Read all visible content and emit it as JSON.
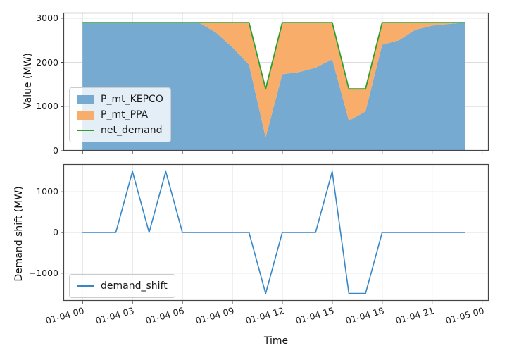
{
  "figure": {
    "background": "#ffffff"
  },
  "colors": {
    "kepco": "#76aad0",
    "ppa": "#f9ad6a",
    "net": "#2ca02c",
    "shift": "#3787c8",
    "grid": "#dddddd",
    "spine": "#454545",
    "text": "#111111"
  },
  "x_axis": {
    "label": "Time",
    "xlim": [
      -1.15,
      24.4
    ],
    "tick_hours": [
      0,
      3,
      6,
      9,
      12,
      15,
      18,
      21,
      24
    ],
    "tick_labels": [
      "01-04 00",
      "01-04 03",
      "01-04 06",
      "01-04 09",
      "01-04 12",
      "01-04 15",
      "01-04 18",
      "01-04 21",
      "01-05 00"
    ]
  },
  "chart_data": [
    {
      "type": "area",
      "title": "",
      "ylabel": "Value (MW)",
      "ylim": [
        0,
        3125
      ],
      "yticks": {
        "values": [
          0,
          1000,
          2000,
          3000
        ],
        "labels": [
          "0",
          "1000",
          "2000",
          "3000"
        ]
      },
      "grid": true,
      "legend_position": "center left",
      "x_hours": [
        0,
        1,
        2,
        3,
        4,
        5,
        6,
        7,
        8,
        9,
        10,
        11,
        12,
        13,
        14,
        15,
        16,
        17,
        18,
        19,
        20,
        21,
        22,
        23
      ],
      "series": [
        {
          "name": "P_mt_KEPCO",
          "render": "area",
          "color_key": "kepco",
          "values": [
            2900,
            2900,
            2900,
            2900,
            2900,
            2900,
            2900,
            2900,
            2680,
            2340,
            1950,
            300,
            1730,
            1780,
            1880,
            2070,
            680,
            890,
            2400,
            2500,
            2740,
            2830,
            2870,
            2900
          ]
        },
        {
          "name": "P_mt_PPA",
          "render": "area",
          "color_key": "ppa",
          "values": [
            0,
            0,
            0,
            0,
            0,
            0,
            0,
            0,
            220,
            560,
            950,
            1100,
            1170,
            1120,
            1020,
            830,
            720,
            510,
            500,
            400,
            160,
            70,
            30,
            0
          ]
        },
        {
          "name": "net_demand",
          "render": "line",
          "color_key": "net",
          "width": 1.8,
          "values": [
            2900,
            2900,
            2900,
            2900,
            2900,
            2900,
            2900,
            2900,
            2900,
            2900,
            2900,
            1400,
            2900,
            2900,
            2900,
            2900,
            1400,
            1400,
            2900,
            2900,
            2900,
            2900,
            2900,
            2900
          ]
        }
      ]
    },
    {
      "type": "line",
      "title": "",
      "ylabel": "Demand shift (MW)",
      "ylim": [
        -1680,
        1680
      ],
      "yticks": {
        "values": [
          -1000,
          0,
          1000
        ],
        "labels": [
          "−1000",
          "0",
          "1000"
        ]
      },
      "grid": true,
      "legend_position": "lower left",
      "x_hours": [
        0,
        1,
        2,
        3,
        4,
        5,
        6,
        7,
        8,
        9,
        10,
        11,
        12,
        13,
        14,
        15,
        16,
        17,
        18,
        19,
        20,
        21,
        22,
        23
      ],
      "series": [
        {
          "name": "demand_shift",
          "render": "line",
          "color_key": "shift",
          "width": 1.6,
          "values": [
            0,
            0,
            0,
            1500,
            0,
            1500,
            0,
            0,
            0,
            0,
            0,
            -1500,
            0,
            0,
            0,
            1500,
            -1500,
            -1500,
            0,
            0,
            0,
            0,
            0,
            0
          ]
        }
      ]
    }
  ]
}
